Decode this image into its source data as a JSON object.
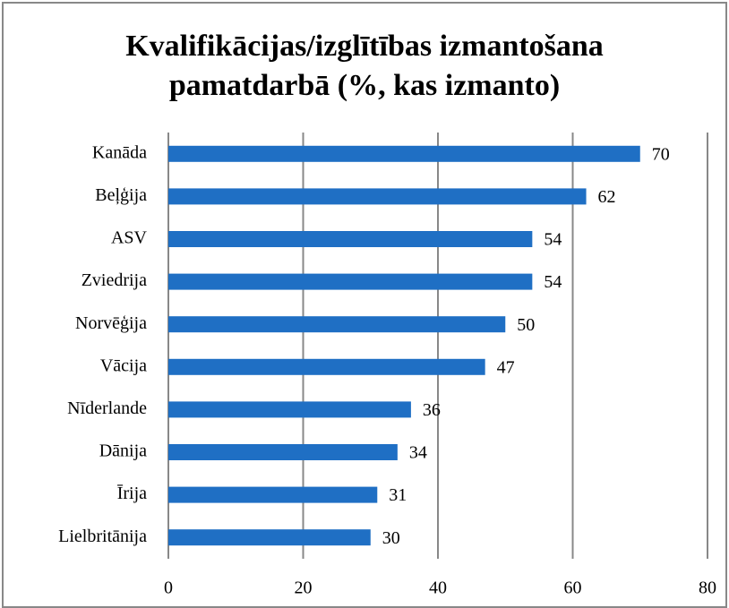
{
  "chart_data": {
    "type": "bar",
    "orientation": "horizontal",
    "title": "Kvalifikācijas/izglītības izmantošana pamatdarbā (%, kas izmanto)",
    "categories": [
      "Kanāda",
      "Beļģija",
      "ASV",
      "Zviedrija",
      "Norvēģija",
      "Vācija",
      "Nīderlande",
      "Dānija",
      "Īrija",
      "Lielbritānija"
    ],
    "values": [
      70,
      62,
      54,
      54,
      50,
      47,
      36,
      34,
      31,
      30
    ],
    "color": "#1f6fc4",
    "xlim": [
      0,
      80
    ],
    "xticks": [
      0,
      20,
      40,
      60,
      80
    ],
    "grid": true
  }
}
